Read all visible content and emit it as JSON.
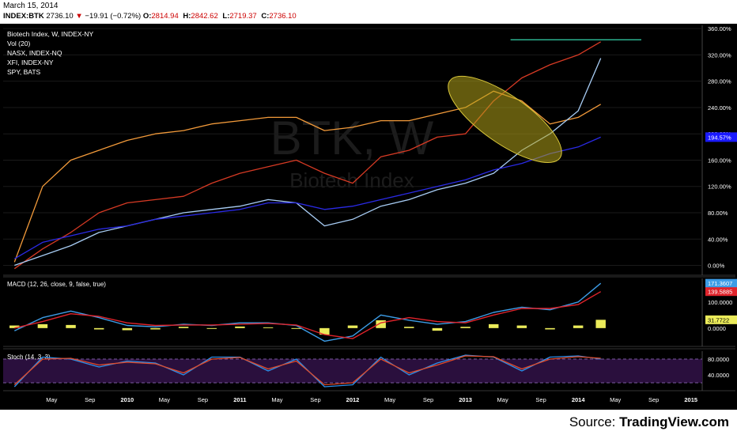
{
  "header": {
    "date": "March 15, 2014",
    "symbol": "INDEX:BTK",
    "last": "2736.10",
    "change": "−19.91 (−0.72%)",
    "open_label": "O:",
    "open": "2814.94",
    "high_label": "H:",
    "high": "2842.62",
    "low_label": "L:",
    "low": "2719.37",
    "close_label": "C:",
    "close": "2736.10"
  },
  "legend": {
    "main": "Biotech Index, W, INDEX-NY",
    "vol": "Vol (20)",
    "nasx": "NASX, INDEX-NQ",
    "xfi": "XFI, INDEX-NY",
    "spy": "SPY, BATS"
  },
  "watermark": {
    "symbol": "BTK, W",
    "name": "Biotech Index"
  },
  "source": {
    "prefix": "Source: ",
    "name": "TradingView.com"
  },
  "colors": {
    "background": "#000000",
    "btk": "#d63a24",
    "nasx": "#f29a3a",
    "xfi": "#a8cdf5",
    "spy": "#2a2ae6",
    "macd": "#3c9ce6",
    "signal": "#e0232b",
    "hist": "#ebeb5a",
    "stoch_k": "#2f8fe8",
    "stoch_d": "#e04a2a",
    "stoch_fill": "#2a0f3d",
    "resistance": "#2fbf9a",
    "ellipse": "#b4a41a"
  },
  "chart_data": [
    {
      "type": "line",
      "title": "Biotech Index, W, INDEX-NY",
      "y_unit": "%",
      "ylim": [
        -15,
        365
      ],
      "y_ticks": [
        "360.00%",
        "320.00%",
        "280.00%",
        "240.00%",
        "200.00%",
        "160.00%",
        "120.00%",
        "80.00%",
        "40.00%",
        "0.00%"
      ],
      "x_ticks": [
        "May",
        "Sep",
        "2010",
        "May",
        "Sep",
        "2011",
        "May",
        "Sep",
        "2012",
        "May",
        "Sep",
        "2013",
        "May",
        "Sep",
        "2014",
        "May",
        "Sep",
        "2015"
      ],
      "x": [
        2009.0,
        2009.25,
        2009.5,
        2009.75,
        2010.0,
        2010.25,
        2010.5,
        2010.75,
        2011.0,
        2011.25,
        2011.5,
        2011.75,
        2012.0,
        2012.25,
        2012.5,
        2012.75,
        2013.0,
        2013.25,
        2013.5,
        2013.75,
        2014.0,
        2014.2
      ],
      "series": [
        {
          "key": "btk",
          "name": "Biotech Index, W, INDEX-NY",
          "values": [
            -5,
            25,
            50,
            80,
            95,
            100,
            105,
            125,
            140,
            150,
            160,
            140,
            125,
            165,
            175,
            195,
            200,
            250,
            285,
            305,
            320,
            340
          ]
        },
        {
          "key": "nasx",
          "name": "NASX, INDEX-NQ",
          "values": [
            5,
            120,
            160,
            175,
            190,
            200,
            205,
            215,
            220,
            225,
            225,
            205,
            210,
            220,
            220,
            230,
            240,
            265,
            250,
            215,
            225,
            245
          ]
        },
        {
          "key": "xfi",
          "name": "XFI, INDEX-NY",
          "values": [
            0,
            15,
            30,
            50,
            60,
            70,
            80,
            85,
            90,
            100,
            95,
            60,
            70,
            90,
            100,
            115,
            125,
            140,
            175,
            200,
            235,
            315
          ]
        },
        {
          "key": "spy",
          "name": "SPY, BATS",
          "values": [
            10,
            35,
            45,
            55,
            60,
            70,
            75,
            80,
            85,
            95,
            95,
            85,
            90,
            100,
            110,
            120,
            130,
            145,
            155,
            170,
            180,
            195
          ]
        }
      ],
      "last_value_label": "194.57%",
      "resistance_level": 343
    },
    {
      "type": "line",
      "title": "MACD (12, 26, close, 9, false, true)",
      "ylim": [
        -70,
        190
      ],
      "y_ticks": [
        "100.0000",
        "0.0000"
      ],
      "x": [
        2009.0,
        2009.25,
        2009.5,
        2009.75,
        2010.0,
        2010.25,
        2010.5,
        2010.75,
        2011.0,
        2011.25,
        2011.5,
        2011.75,
        2012.0,
        2012.25,
        2012.5,
        2012.75,
        2013.0,
        2013.25,
        2013.5,
        2013.75,
        2014.0,
        2014.2
      ],
      "series": [
        {
          "key": "macd",
          "name": "MACD",
          "values": [
            -10,
            40,
            65,
            40,
            10,
            5,
            15,
            10,
            20,
            20,
            10,
            -50,
            -30,
            50,
            30,
            15,
            25,
            60,
            80,
            70,
            100,
            171.3607
          ]
        },
        {
          "key": "signal",
          "name": "Signal",
          "values": [
            0,
            25,
            55,
            45,
            20,
            10,
            12,
            12,
            15,
            18,
            12,
            -25,
            -40,
            20,
            40,
            25,
            20,
            50,
            75,
            75,
            90,
            139.5885
          ]
        }
      ],
      "histogram": [
        10,
        15,
        12,
        -5,
        -8,
        -5,
        5,
        -2,
        6,
        3,
        -3,
        -25,
        10,
        30,
        5,
        -10,
        5,
        15,
        10,
        -5,
        10,
        31.7722
      ],
      "labels": [
        "171.3607",
        "139.5885",
        "31.7722"
      ]
    },
    {
      "type": "line",
      "title": "Stoch (14, 3, 3)",
      "ylim": [
        0,
        100
      ],
      "y_ticks": [
        "80.0000",
        "40.0000"
      ],
      "x": [
        2009.0,
        2009.25,
        2009.5,
        2009.75,
        2010.0,
        2010.25,
        2010.5,
        2010.75,
        2011.0,
        2011.25,
        2011.5,
        2011.75,
        2012.0,
        2012.25,
        2012.5,
        2012.75,
        2013.0,
        2013.25,
        2013.5,
        2013.75,
        2014.0,
        2014.2
      ],
      "series": [
        {
          "key": "stoch_k",
          "name": "%K",
          "values": [
            10,
            85,
            80,
            60,
            75,
            70,
            40,
            85,
            85,
            50,
            80,
            10,
            15,
            85,
            40,
            70,
            90,
            85,
            50,
            85,
            88,
            80
          ]
        },
        {
          "key": "stoch_d",
          "name": "%D",
          "values": [
            15,
            80,
            82,
            65,
            72,
            68,
            45,
            80,
            84,
            55,
            75,
            15,
            20,
            80,
            45,
            65,
            88,
            86,
            55,
            80,
            86,
            82
          ]
        }
      ],
      "bands": [
        80,
        20
      ]
    }
  ]
}
